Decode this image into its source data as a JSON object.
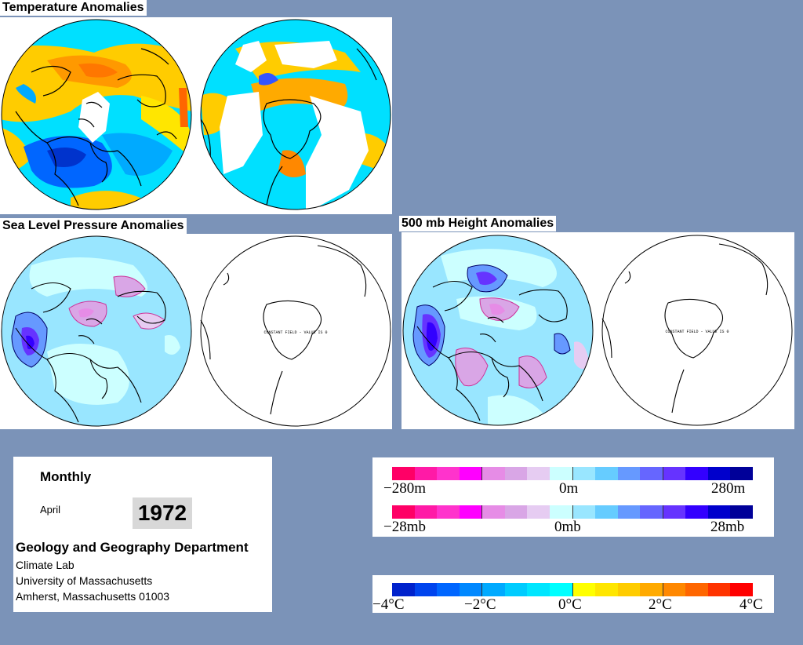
{
  "titles": {
    "temperature": "Temperature Anomalies",
    "slp": "Sea Level Pressure Anomalies",
    "height": "500 mb Height Anomalies"
  },
  "constant_field_label": "CONSTANT FIELD - VALUE IS 0",
  "info": {
    "period": "Monthly",
    "month": "April",
    "year": "1972",
    "department": "Geology and Geography Department",
    "lab": "Climate Lab",
    "university": "University of Massachusetts",
    "address": "Amherst, Massachusetts 01003"
  },
  "legend_height": {
    "labels": [
      "−280m",
      "0m",
      "280m"
    ],
    "colors": [
      "#ff0066",
      "#ff1aa6",
      "#ff33cc",
      "#ff00ff",
      "#e68ce6",
      "#d9a6e6",
      "#e6ccf2",
      "#ccffff",
      "#99e6ff",
      "#66ccff",
      "#6699ff",
      "#6666ff",
      "#6633ff",
      "#3300ff",
      "#0000cc",
      "#000099"
    ]
  },
  "legend_pressure": {
    "labels": [
      "−28mb",
      "0mb",
      "28mb"
    ],
    "colors": [
      "#ff0066",
      "#ff1aa6",
      "#ff33cc",
      "#ff00ff",
      "#e68ce6",
      "#d9a6e6",
      "#e6ccf2",
      "#ccffff",
      "#99e6ff",
      "#66ccff",
      "#6699ff",
      "#6666ff",
      "#6633ff",
      "#3300ff",
      "#0000cc",
      "#000099"
    ]
  },
  "legend_temperature": {
    "labels": [
      "−4°C",
      "−2°C",
      "0°C",
      "2°C",
      "4°C"
    ],
    "colors": [
      "#0022cc",
      "#0044ee",
      "#0066ff",
      "#0088ff",
      "#00aaff",
      "#00ccff",
      "#00e6ff",
      "#00ffff",
      "#ffff00",
      "#ffe600",
      "#ffcc00",
      "#ffaa00",
      "#ff8800",
      "#ff6600",
      "#ff3300",
      "#ff0000"
    ]
  }
}
